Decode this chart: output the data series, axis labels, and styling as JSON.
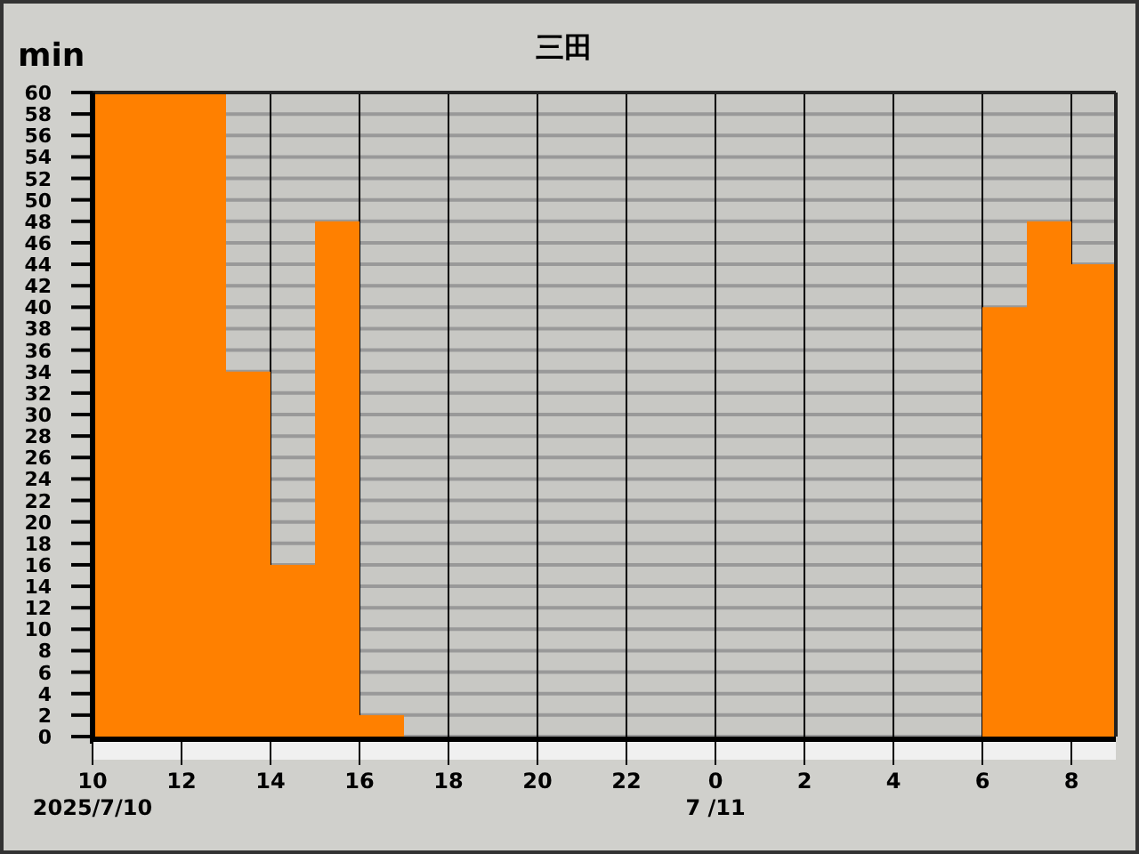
{
  "chart_data": {
    "type": "histogram",
    "title": "三田",
    "ylabel": "min",
    "bins": [
      "2025-07-10T10:00",
      "2025-07-10T11:00",
      "2025-07-10T12:00",
      "2025-07-10T13:00",
      "2025-07-10T14:00",
      "2025-07-10T15:00",
      "2025-07-10T16:00",
      "2025-07-10T17:00",
      "2025-07-10T18:00",
      "2025-07-10T19:00",
      "2025-07-10T20:00",
      "2025-07-10T21:00",
      "2025-07-10T22:00",
      "2025-07-10T23:00",
      "2025-07-11T00:00",
      "2025-07-11T01:00",
      "2025-07-11T02:00",
      "2025-07-11T03:00",
      "2025-07-11T04:00",
      "2025-07-11T05:00",
      "2025-07-11T06:00",
      "2025-07-11T07:00",
      "2025-07-11T08:00",
      "2025-07-11T09:00"
    ],
    "values": [
      60,
      60,
      60,
      34,
      16,
      48,
      2,
      0,
      0,
      0,
      0,
      0,
      0,
      0,
      0,
      0,
      0,
      0,
      0,
      0,
      40,
      48,
      44
    ],
    "color": "#ff8000",
    "xlim": [
      "2025-07-10T10:00",
      "2025-07-11T09:00"
    ],
    "xticks": [
      {
        "value": "2025-07-10T10:00",
        "label": "10\n2025/7/10"
      },
      {
        "value": "2025-07-10T12:00",
        "label": "12"
      },
      {
        "value": "2025-07-10T14:00",
        "label": "14"
      },
      {
        "value": "2025-07-10T16:00",
        "label": "16"
      },
      {
        "value": "2025-07-10T18:00",
        "label": "18"
      },
      {
        "value": "2025-07-10T20:00",
        "label": "20"
      },
      {
        "value": "2025-07-10T22:00",
        "label": "22"
      },
      {
        "value": "2025-07-11T00:00",
        "label": "0\n7 /11"
      },
      {
        "value": "2025-07-11T02:00",
        "label": "2"
      },
      {
        "value": "2025-07-11T04:00",
        "label": "4"
      },
      {
        "value": "2025-07-11T06:00",
        "label": "6"
      },
      {
        "value": "2025-07-11T08:00",
        "label": "8"
      }
    ],
    "ylim": [
      0,
      60
    ],
    "yticks": [
      0,
      2,
      4,
      6,
      8,
      10,
      12,
      14,
      16,
      18,
      20,
      22,
      24,
      26,
      28,
      30,
      32,
      34,
      36,
      38,
      40,
      42,
      44,
      46,
      48,
      50,
      52,
      54,
      56,
      58,
      60
    ],
    "grid": true
  }
}
